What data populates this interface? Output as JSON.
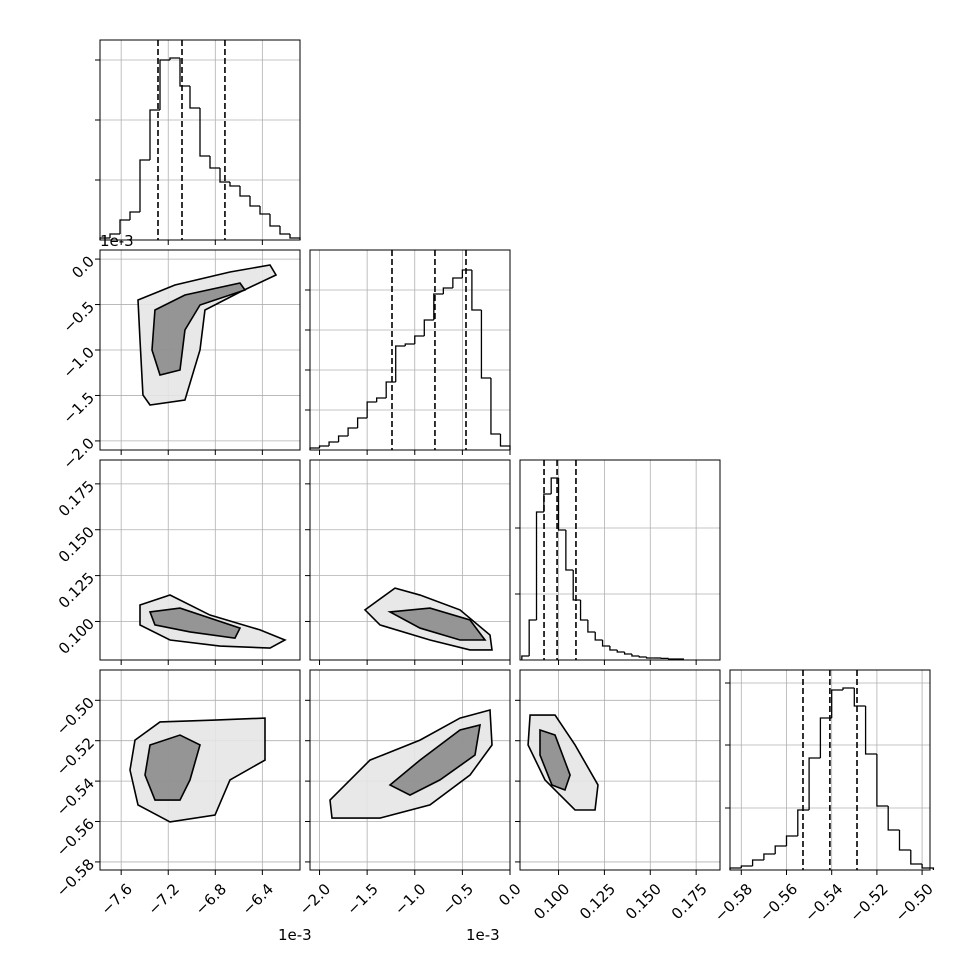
{
  "chart_data": {
    "type": "corner",
    "params": [
      {
        "offset": "1e-3",
        "xlim": [
          -7.78,
          -6.08
        ],
        "ticks": [
          {
            "value": -7.6,
            "label": "−7.6"
          },
          {
            "value": -7.2,
            "label": "−7.2"
          },
          {
            "value": -6.8,
            "label": "−6.8"
          },
          {
            "value": -6.4,
            "label": "−6.4"
          }
        ],
        "hist": {
          "bins": [
            -7.78,
            -7.695,
            -7.61,
            -7.525,
            -7.44,
            -7.355,
            -7.27,
            -7.185,
            -7.1,
            -7.015,
            -6.93,
            -6.845,
            -6.76,
            -6.675,
            -6.59,
            -6.505,
            -6.42,
            -6.335,
            -6.25,
            -6.165,
            -6.08
          ],
          "values": [
            0.01,
            0.03,
            0.1,
            0.14,
            0.4,
            0.65,
            0.9,
            0.91,
            0.77,
            0.66,
            0.42,
            0.36,
            0.29,
            0.27,
            0.22,
            0.17,
            0.13,
            0.07,
            0.03,
            0.01
          ],
          "ylim": [
            0,
            1
          ],
          "yticks": [
            0.3,
            0.6,
            0.9
          ]
        },
        "quantiles": [
          -7.287,
          -7.083,
          -6.718
        ]
      },
      {
        "offset": "1e-3",
        "xlim": [
          -2.1,
          0.0
        ],
        "ylim": [
          -2.1,
          0.1
        ],
        "ticks": [
          {
            "value": -2.0,
            "label": "−2.0"
          },
          {
            "value": -1.5,
            "label": "−1.5"
          },
          {
            "value": -1.0,
            "label": "−1.0"
          },
          {
            "value": -0.5,
            "label": "−0.5"
          },
          {
            "value": 0,
            "label": "0.0"
          }
        ],
        "hist": {
          "bins": [
            -2.1,
            -2.0,
            -1.9,
            -1.8,
            -1.7,
            -1.6,
            -1.5,
            -1.4,
            -1.3,
            -1.2,
            -1.1,
            -1.0,
            -0.9,
            -0.8,
            -0.7,
            -0.6,
            -0.5,
            -0.4,
            -0.3,
            -0.2,
            -0.1,
            0.0
          ],
          "values": [
            0.01,
            0.02,
            0.04,
            0.07,
            0.11,
            0.16,
            0.24,
            0.26,
            0.34,
            0.52,
            0.53,
            0.57,
            0.65,
            0.78,
            0.81,
            0.86,
            0.9,
            0.7,
            0.36,
            0.08,
            0.02
          ],
          "ylim": [
            0,
            1
          ],
          "yticks": [
            0.2,
            0.4,
            0.6,
            0.8
          ]
        },
        "quantiles": [
          -1.239,
          -0.788,
          -0.462
        ]
      },
      {
        "xlim": [
          0.079,
          0.188
        ],
        "ylim": [
          0.079,
          0.188
        ],
        "ticks": [
          {
            "value": 0.1,
            "label": "0.100"
          },
          {
            "value": 0.125,
            "label": "0.125"
          },
          {
            "value": 0.15,
            "label": "0.150"
          },
          {
            "value": 0.175,
            "label": "0.175"
          }
        ],
        "hist": {
          "bins": [
            0.08,
            0.084,
            0.088,
            0.092,
            0.096,
            0.1,
            0.104,
            0.108,
            0.112,
            0.116,
            0.12,
            0.124,
            0.128,
            0.132,
            0.136,
            0.14,
            0.144,
            0.148,
            0.152,
            0.156,
            0.16,
            0.164,
            0.168
          ],
          "values": [
            0.02,
            0.2,
            0.74,
            0.83,
            0.91,
            0.65,
            0.45,
            0.3,
            0.2,
            0.14,
            0.1,
            0.07,
            0.05,
            0.04,
            0.03,
            0.02,
            0.015,
            0.01,
            0.01,
            0.008,
            0.005,
            0.005
          ],
          "ylim": [
            0,
            1
          ],
          "yticks": [
            0.33,
            0.66
          ]
        },
        "quantiles": [
          0.0921,
          0.0992,
          0.1095
        ]
      },
      {
        "xlim": [
          -0.585,
          -0.4965
        ],
        "ylim": [
          -0.584,
          -0.485
        ],
        "ticks": [
          {
            "value": -0.58,
            "label": "−0.58"
          },
          {
            "value": -0.56,
            "label": "−0.56"
          },
          {
            "value": -0.54,
            "label": "−0.54"
          },
          {
            "value": -0.52,
            "label": "−0.52"
          },
          {
            "value": -0.5,
            "label": "−0.50"
          }
        ],
        "hist": {
          "bins": [
            -0.585,
            -0.58,
            -0.575,
            -0.57,
            -0.565,
            -0.56,
            -0.555,
            -0.55,
            -0.545,
            -0.54,
            -0.535,
            -0.53,
            -0.525,
            -0.52,
            -0.515,
            -0.51,
            -0.505,
            -0.5,
            -0.495
          ],
          "values": [
            0.01,
            0.02,
            0.05,
            0.08,
            0.12,
            0.17,
            0.3,
            0.56,
            0.76,
            0.9,
            0.91,
            0.82,
            0.58,
            0.32,
            0.2,
            0.1,
            0.03,
            0.01
          ],
          "ylim": [
            0,
            1
          ],
          "yticks": [
            0.31,
            0.625,
            0.935
          ]
        },
        "quantiles": [
          -0.5527,
          -0.5408,
          -0.5288
        ]
      }
    ],
    "pairs": [
      {
        "contours": [
          {
            "x": [
              -7.457,
              -7.143,
              -6.675,
              -6.335,
              -6.284,
              -6.59,
              -6.888,
              -6.93,
              -7.058,
              -7.355,
              -7.415,
              -7.44
            ],
            "y": [
              -0.45,
              -0.285,
              -0.142,
              -0.065,
              -0.175,
              -0.362,
              -0.56,
              -1.0,
              -1.55,
              -1.605,
              -1.495,
              -0.89
            ]
          },
          {
            "x": [
              -7.313,
              -7.058,
              -6.59,
              -6.548,
              -6.93,
              -7.058,
              -7.1,
              -7.27,
              -7.338
            ],
            "y": [
              -0.56,
              -0.395,
              -0.263,
              -0.34,
              -0.505,
              -0.78,
              -1.22,
              -1.275,
              -1.0
            ]
          }
        ]
      },
      {
        "contours": [
          {
            "x": [
              -7.44,
              -7.185,
              -6.845,
              -6.42,
              -6.208,
              -6.335,
              -6.76,
              -7.185,
              -7.44
            ],
            "y": [
              0.109,
              0.1144,
              0.1035,
              0.0954,
              0.0899,
              0.0855,
              0.0866,
              0.0899,
              0.0981
            ]
          },
          {
            "x": [
              -7.355,
              -7.1,
              -6.59,
              -6.633,
              -7.015,
              -7.313
            ],
            "y": [
              0.1052,
              0.1073,
              0.0964,
              0.0909,
              0.0943,
              0.0981
            ]
          }
        ]
      },
      {
        "contours": [
          {
            "x": [
              -1.5225,
              -1.2075,
              -0.945,
              -0.525,
              -0.21,
              -0.189,
              -0.42,
              -0.84,
              -1.365
            ],
            "y": [
              0.1063,
              0.1182,
              0.1144,
              0.1063,
              0.0926,
              0.0845,
              0.0845,
              0.0899,
              0.0981
            ]
          },
          {
            "x": [
              -1.26,
              -0.84,
              -0.42,
              -0.2625,
              -0.525,
              -0.945
            ],
            "y": [
              0.1052,
              0.1073,
              0.1008,
              0.0899,
              0.0899,
              0.0964
            ]
          }
        ]
      },
      {
        "contours": [
          {
            "x": [
              -7.4825,
              -7.27,
              -6.8025,
              -6.3775,
              -6.3775,
              -6.675,
              -6.8025,
              -7.185,
              -7.457,
              -7.525
            ],
            "y": [
              -0.5197,
              -0.5107,
              -0.5098,
              -0.5088,
              -0.5296,
              -0.5394,
              -0.5568,
              -0.5602,
              -0.5518,
              -0.5345
            ]
          },
          {
            "x": [
              -7.355,
              -7.1,
              -6.93,
              -7.015,
              -7.1,
              -7.3125,
              -7.3975
            ],
            "y": [
              -0.5221,
              -0.5172,
              -0.5221,
              -0.5394,
              -0.5494,
              -0.5494,
              -0.537
            ]
          }
        ]
      },
      {
        "contours": [
          {
            "x": [
              -1.89,
              -1.47,
              -0.945,
              -0.525,
              -0.21,
              -0.189,
              -0.42,
              -0.84,
              -1.365,
              -1.869
            ],
            "y": [
              -0.5494,
              -0.5296,
              -0.5197,
              -0.5088,
              -0.5048,
              -0.5221,
              -0.537,
              -0.5518,
              -0.5583,
              -0.5583
            ]
          },
          {
            "x": [
              -1.26,
              -0.945,
              -0.525,
              -0.315,
              -0.3675,
              -0.735,
              -1.05
            ],
            "y": [
              -0.5419,
              -0.5296,
              -0.5147,
              -0.5122,
              -0.5271,
              -0.5394,
              -0.5469
            ]
          }
        ]
      },
      {
        "contours": [
          {
            "x": [
              0.0845,
              0.0981,
              0.109,
              0.1215,
              0.1199,
              0.109,
              0.0926,
              0.0834
            ],
            "y": [
              -0.5073,
              -0.5073,
              -0.5221,
              -0.5419,
              -0.5543,
              -0.5543,
              -0.5394,
              -0.5221
            ]
          },
          {
            "x": [
              0.0899,
              0.0981,
              0.1063,
              0.1035,
              0.0964,
              0.0899
            ],
            "y": [
              -0.5147,
              -0.5172,
              -0.537,
              -0.5444,
              -0.5419,
              -0.5271
            ]
          }
        ]
      }
    ]
  }
}
